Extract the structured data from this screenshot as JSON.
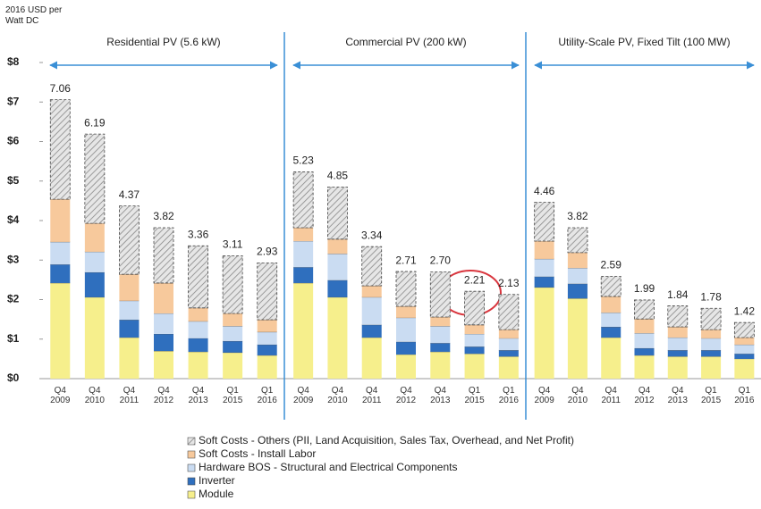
{
  "chart_data": [
    {
      "type": "stacked_bar",
      "title": "Residential PV (5.6 kW)",
      "y_axis_title": "2016 USD per Watt DC",
      "ylim": [
        0,
        8
      ],
      "yticks": [
        {
          "value": 0,
          "label": "$0"
        },
        {
          "value": 1,
          "label": "$1"
        },
        {
          "value": 2,
          "label": "$2"
        },
        {
          "value": 3,
          "label": "$3"
        },
        {
          "value": 4,
          "label": "$4"
        },
        {
          "value": 5,
          "label": "$5"
        },
        {
          "value": 6,
          "label": "$6"
        },
        {
          "value": 7,
          "label": "$7"
        },
        {
          "value": 8,
          "label": "$8"
        }
      ],
      "categories": [
        "Q4 2009",
        "Q4 2010",
        "Q4 2011",
        "Q4 2012",
        "Q4 2013",
        "Q1 2015",
        "Q1 2016"
      ],
      "series": [
        {
          "name": "Module",
          "color": "#f6ef8c",
          "values": [
            2.42,
            2.06,
            1.04,
            0.7,
            0.68,
            0.66,
            0.59
          ]
        },
        {
          "name": "Inverter",
          "color": "#2f6fbe",
          "values": [
            0.47,
            0.63,
            0.45,
            0.43,
            0.34,
            0.29,
            0.27
          ]
        },
        {
          "name": "Hardware BOS - Structural and Electrical Components",
          "color": "#cadcf2",
          "values": [
            0.57,
            0.52,
            0.48,
            0.52,
            0.43,
            0.38,
            0.32
          ]
        },
        {
          "name": "Soft Costs - Install Labor",
          "color": "#f7c99c",
          "values": [
            1.08,
            0.72,
            0.67,
            0.77,
            0.34,
            0.32,
            0.31
          ]
        },
        {
          "name": "Soft Costs - Others (PII, Land Acquisition, Sales Tax, Overhead, and Net Profit)",
          "color": "#bdbdbd",
          "values": [
            2.52,
            2.26,
            1.73,
            1.4,
            1.57,
            1.46,
            1.44
          ]
        }
      ],
      "totals": [
        7.06,
        6.19,
        4.37,
        3.82,
        3.36,
        3.11,
        2.93
      ],
      "value_labels": [
        "7.06",
        "6.19",
        "4.37",
        "3.82",
        "3.36",
        "3.11",
        "2.93"
      ]
    },
    {
      "type": "stacked_bar",
      "title": "Commercial PV (200 kW)",
      "categories": [
        "Q4 2009",
        "Q4 2010",
        "Q4 2011",
        "Q4 2012",
        "Q4 2013",
        "Q1 2015",
        "Q1 2016"
      ],
      "series": [
        {
          "name": "Module",
          "color": "#f6ef8c",
          "values": [
            2.42,
            2.06,
            1.04,
            0.61,
            0.68,
            0.63,
            0.56
          ]
        },
        {
          "name": "Inverter",
          "color": "#2f6fbe",
          "values": [
            0.4,
            0.43,
            0.32,
            0.32,
            0.22,
            0.18,
            0.16
          ]
        },
        {
          "name": "Hardware BOS - Structural and Electrical Components",
          "color": "#cadcf2",
          "values": [
            0.66,
            0.67,
            0.7,
            0.61,
            0.43,
            0.32,
            0.3
          ]
        },
        {
          "name": "Soft Costs - Install Labor",
          "color": "#f7c99c",
          "values": [
            0.34,
            0.37,
            0.29,
            0.29,
            0.23,
            0.23,
            0.22
          ]
        },
        {
          "name": "Soft Costs - Others (PII, Land Acquisition, Sales Tax, Overhead, and Net Profit)",
          "color": "#bdbdbd",
          "values": [
            1.41,
            1.32,
            0.99,
            0.88,
            1.14,
            0.85,
            0.89
          ]
        }
      ],
      "totals": [
        5.23,
        4.85,
        3.34,
        2.71,
        2.7,
        2.21,
        2.13
      ],
      "value_labels": [
        "5.23",
        "4.85",
        "3.34",
        "2.71",
        "2.70",
        "2.21",
        "2.13"
      ]
    },
    {
      "type": "stacked_bar",
      "title": "Utility-Scale PV, Fixed Tilt (100 MW)",
      "categories": [
        "Q4 2009",
        "Q4 2010",
        "Q4 2011",
        "Q4 2012",
        "Q4 2013",
        "Q1 2015",
        "Q1 2016"
      ],
      "series": [
        {
          "name": "Module",
          "color": "#f6ef8c",
          "values": [
            2.31,
            2.03,
            1.04,
            0.59,
            0.56,
            0.56,
            0.5
          ]
        },
        {
          "name": "Inverter",
          "color": "#2f6fbe",
          "values": [
            0.27,
            0.37,
            0.27,
            0.18,
            0.16,
            0.16,
            0.13
          ]
        },
        {
          "name": "Hardware BOS - Structural and Electrical Components",
          "color": "#cadcf2",
          "values": [
            0.45,
            0.4,
            0.36,
            0.38,
            0.32,
            0.3,
            0.23
          ]
        },
        {
          "name": "Soft Costs - Install Labor",
          "color": "#f7c99c",
          "values": [
            0.45,
            0.39,
            0.41,
            0.36,
            0.27,
            0.22,
            0.18
          ]
        },
        {
          "name": "Soft Costs - Others (PII, Land Acquisition, Sales Tax, Overhead, and Net Profit)",
          "color": "#bdbdbd",
          "values": [
            0.98,
            0.63,
            0.51,
            0.48,
            0.53,
            0.54,
            0.38
          ]
        }
      ],
      "totals": [
        4.46,
        3.82,
        2.59,
        1.99,
        1.84,
        1.78,
        1.42
      ],
      "value_labels": [
        "4.46",
        "3.82",
        "2.59",
        "1.99",
        "1.84",
        "1.78",
        "1.42"
      ]
    }
  ]
}
